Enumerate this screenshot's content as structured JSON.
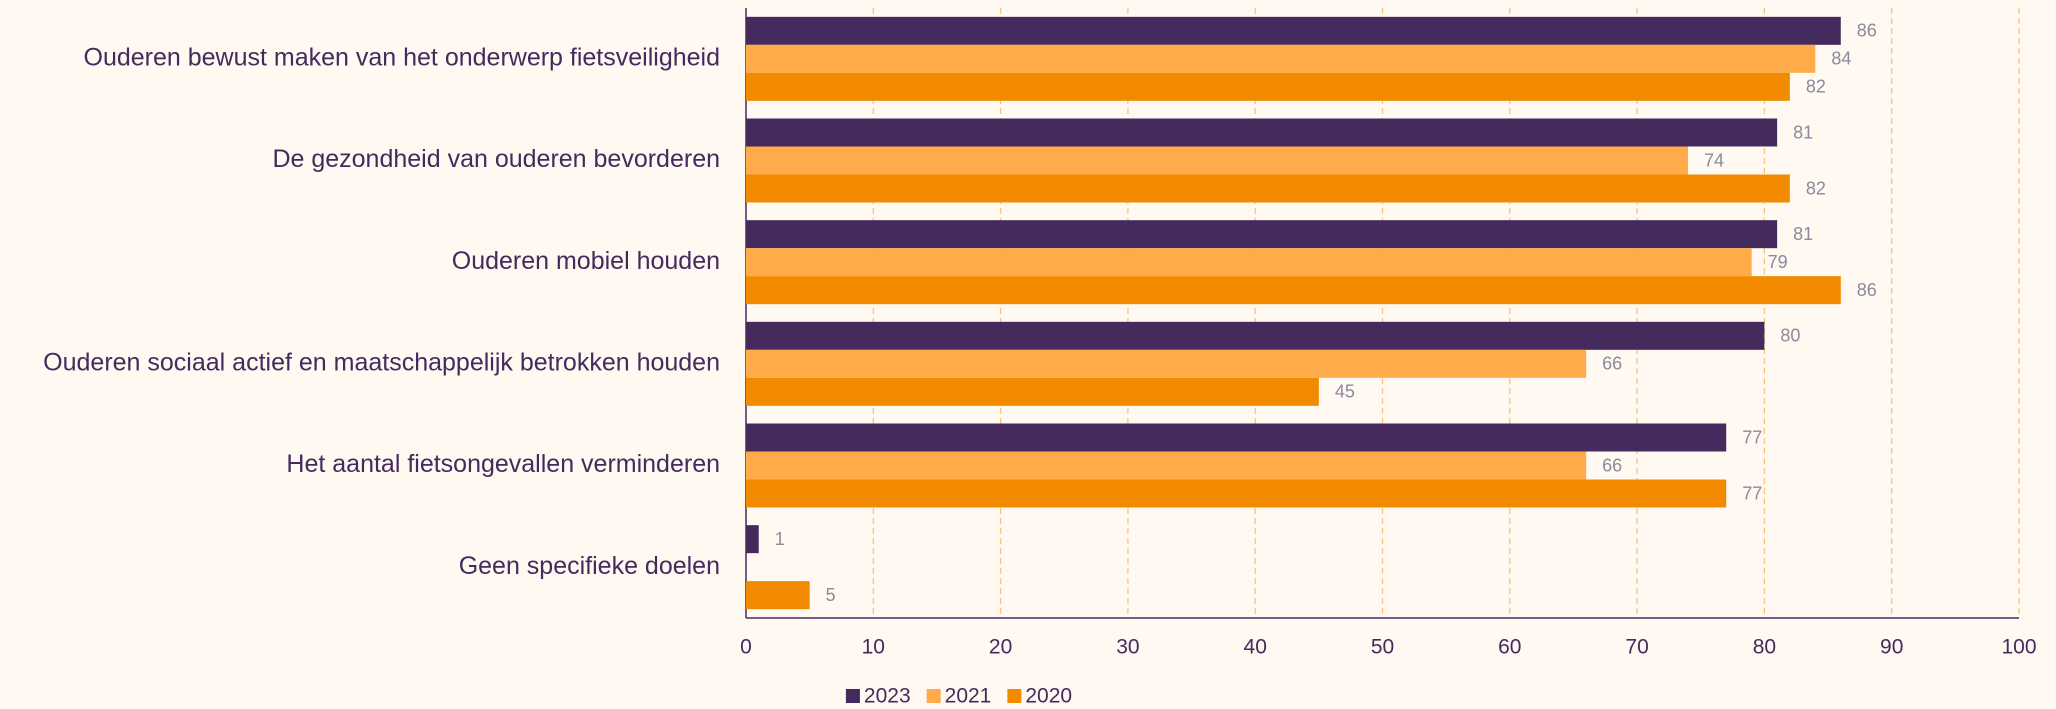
{
  "chart_data": {
    "type": "hbar",
    "categories": [
      "Ouderen bewust maken van het onderwerp fietsveiligheid",
      "De gezondheid van ouderen bevorderen",
      "Ouderen mobiel houden",
      "Ouderen sociaal actief en maatschappelijk betrokken houden",
      "Het aantal fietsongevallen verminderen",
      "Geen specifieke doelen"
    ],
    "series": [
      {
        "name": "2023",
        "color": "#452a5e",
        "values": [
          86,
          81,
          81,
          80,
          77,
          1
        ]
      },
      {
        "name": "2021",
        "color": "#ffab4a",
        "values": [
          84,
          74,
          79,
          66,
          66,
          null
        ]
      },
      {
        "name": "2020",
        "color": "#f28a00",
        "values": [
          82,
          82,
          86,
          45,
          77,
          5
        ]
      }
    ],
    "xlim": [
      0,
      100
    ],
    "xticks": [
      0,
      10,
      20,
      30,
      40,
      50,
      60,
      70,
      80,
      90,
      100
    ],
    "grid": true,
    "legend": "bottom"
  }
}
